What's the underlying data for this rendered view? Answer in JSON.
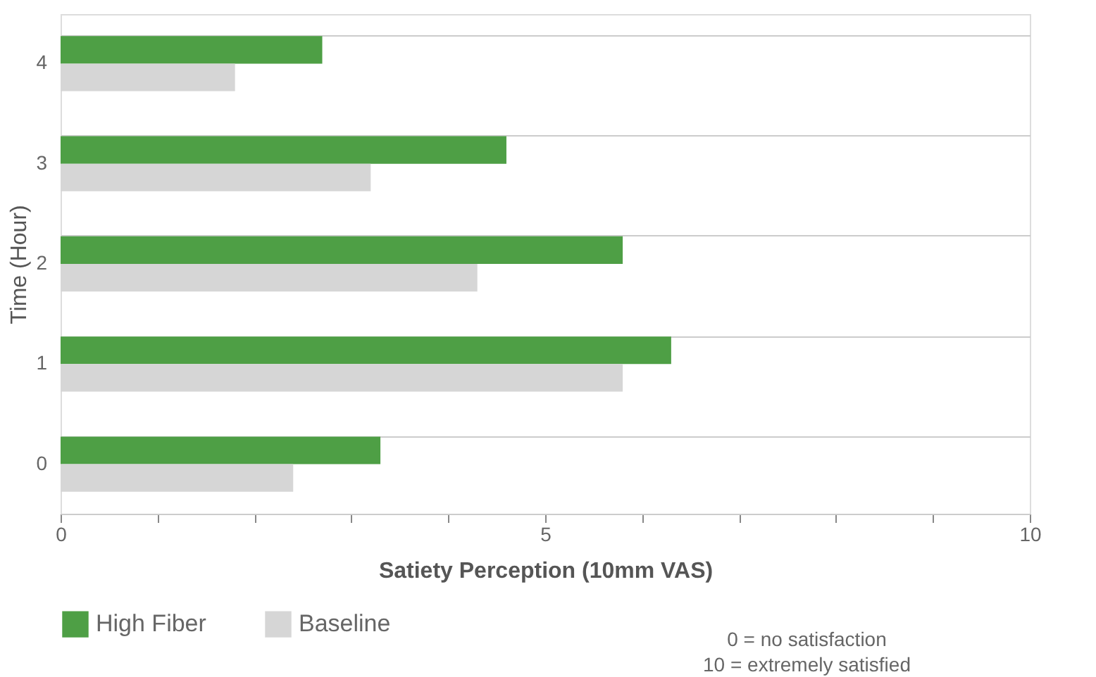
{
  "chart_data": {
    "type": "bar",
    "orientation": "horizontal",
    "xlabel": "Satiety Perception (10mm VAS)",
    "ylabel": "Time (Hour)",
    "categories": [
      "4",
      "3",
      "2",
      "1",
      "0"
    ],
    "series": [
      {
        "name": "High Fiber",
        "color": "#4e9f45",
        "values": [
          2.7,
          4.6,
          5.8,
          6.3,
          3.3
        ]
      },
      {
        "name": "Baseline",
        "color": "#d6d6d6",
        "values": [
          1.8,
          3.2,
          4.3,
          5.8,
          2.4
        ]
      }
    ],
    "xlim": [
      0,
      10
    ],
    "xticks": [
      0,
      {
        "value": 1,
        "label": null
      },
      {
        "value": 2,
        "label": null
      },
      {
        "value": 3,
        "label": null
      },
      {
        "value": 4,
        "label": null
      },
      5,
      {
        "value": 6,
        "label": null
      },
      {
        "value": 7,
        "label": null
      },
      {
        "value": 8,
        "label": null
      },
      {
        "value": 9,
        "label": null
      },
      10
    ],
    "grid": "y",
    "legend": "bottom",
    "annotations": [
      "0 = no satisfaction",
      "10 = extremely satisfied"
    ]
  }
}
